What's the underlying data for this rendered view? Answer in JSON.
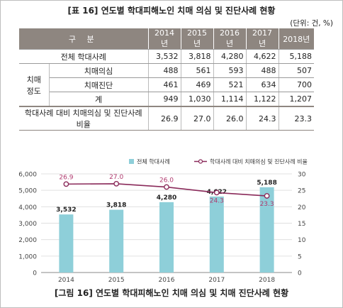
{
  "table": {
    "title": "[표 16] 연도별 학대피해노인 치매 의심 및 진단사례 현황",
    "unit": "(단위: 건, %)",
    "header": [
      "구 분",
      "2014년",
      "2015년",
      "2016년",
      "2017년",
      "2018년"
    ],
    "rows": {
      "total": {
        "label": "전체 학대사례",
        "values": [
          "3,532",
          "3,818",
          "4,280",
          "4,622",
          "5,188"
        ]
      },
      "group_label": "치매\n정도",
      "suspected": {
        "label": "치매의심",
        "values": [
          "488",
          "561",
          "593",
          "488",
          "507"
        ]
      },
      "diagnosed": {
        "label": "치매진단",
        "values": [
          "461",
          "469",
          "521",
          "634",
          "700"
        ]
      },
      "sum": {
        "label": "계",
        "values": [
          "949",
          "1,030",
          "1,114",
          "1,122",
          "1,207"
        ]
      },
      "ratio": {
        "label": "학대사례 대비 치매의심 및 진단사례 비율",
        "values": [
          "26.9",
          "27.0",
          "26.0",
          "24.3",
          "23.3"
        ]
      }
    }
  },
  "chart_data": {
    "type": "bar+line",
    "categories": [
      "2014",
      "2015",
      "2016",
      "2017",
      "2018"
    ],
    "series": [
      {
        "name": "전체 학대사례",
        "type": "bar",
        "axis": "left",
        "values": [
          3532,
          3818,
          4280,
          4622,
          5188
        ],
        "labels": [
          "3,532",
          "3,818",
          "4,280",
          "4,622",
          "5,188"
        ],
        "color": "#8ecfd9"
      },
      {
        "name": "학대사례 대비 치매의심 및 진단사례 비율",
        "type": "line",
        "axis": "right",
        "values": [
          26.9,
          27.0,
          26.0,
          24.3,
          23.3
        ],
        "labels": [
          "26.9",
          "27.0",
          "26.0",
          "24.3",
          "23.3"
        ],
        "color": "#8a2a5a"
      }
    ],
    "y_left": {
      "ticks": [
        "0",
        "1,000",
        "2,000",
        "3,000",
        "4,000",
        "5,000",
        "6,000"
      ],
      "range": [
        0,
        6000
      ]
    },
    "y_right": {
      "ticks": [
        "0",
        "5",
        "10",
        "15",
        "20",
        "25",
        "30"
      ],
      "range": [
        0,
        30
      ]
    },
    "legend_position": "top-center",
    "grid": true
  },
  "figure_title": "[그림 16] 연도별 학대피해노인 치매 의심 및 치매 진단사례 현황"
}
